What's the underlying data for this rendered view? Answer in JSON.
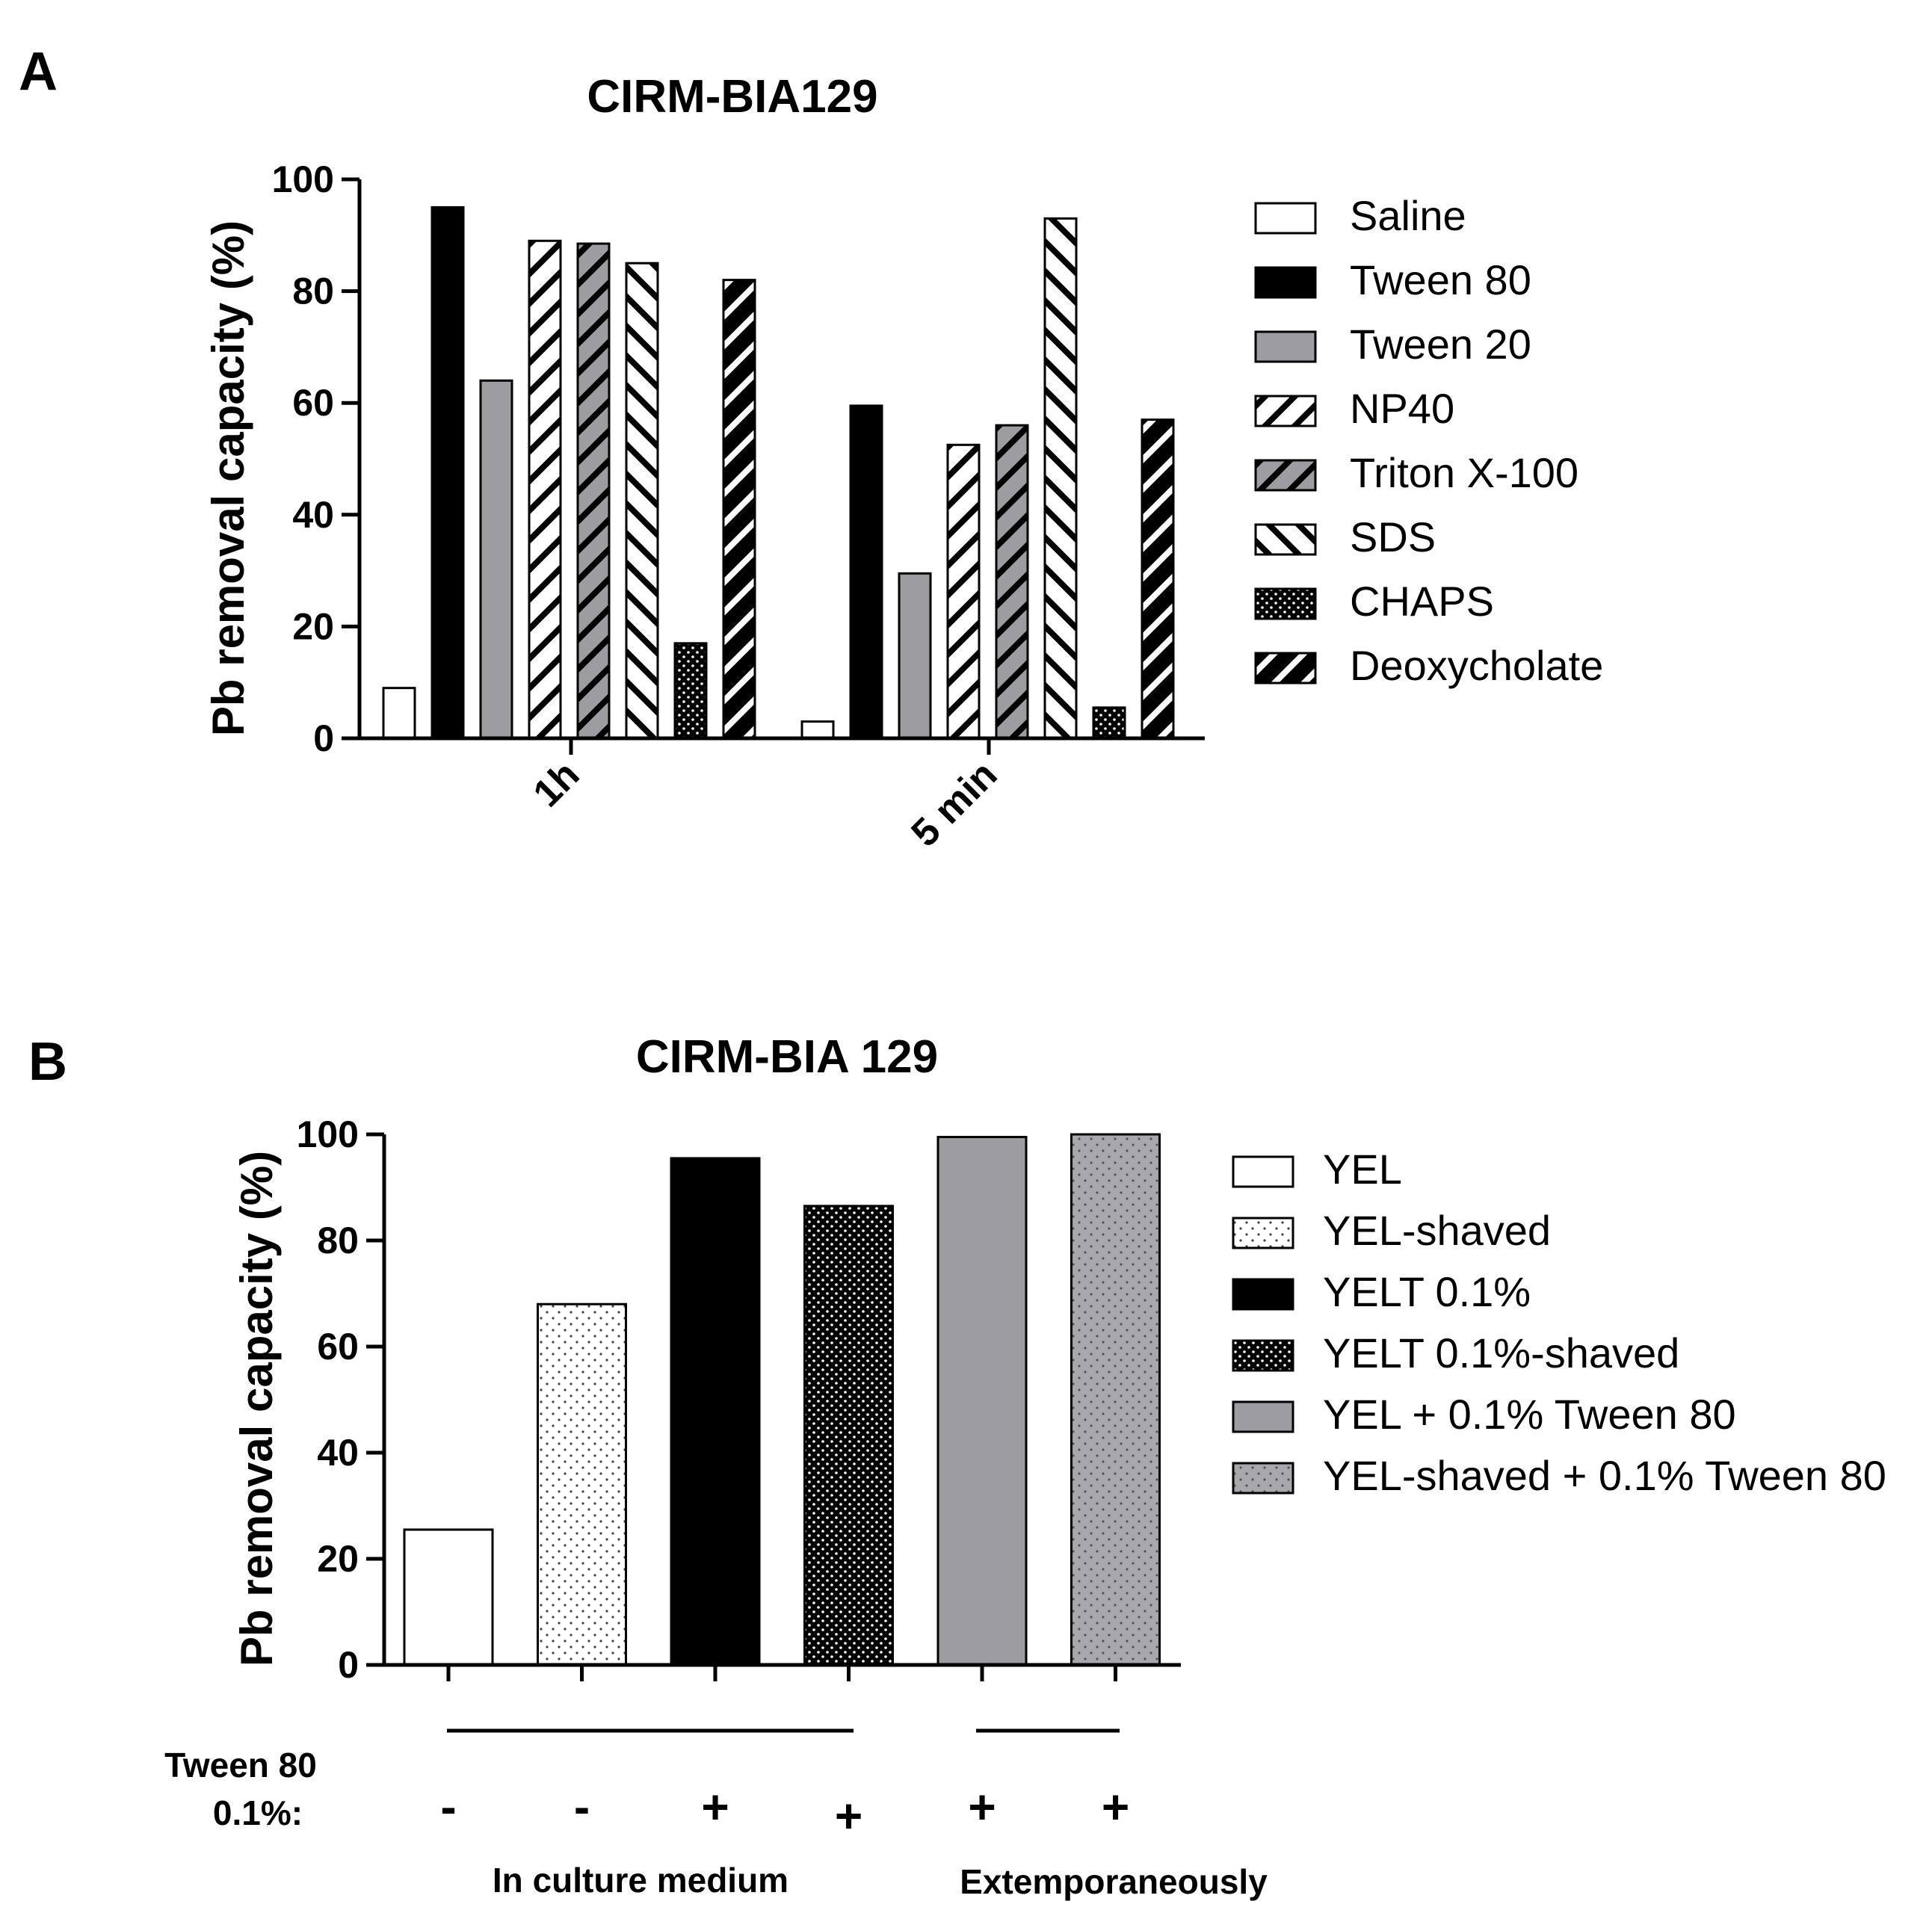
{
  "panel_a": {
    "letter": "A",
    "chart_data": {
      "type": "bar",
      "title": "CIRM-BIA129",
      "ylabel": "Pb removal capacity (%)",
      "xlabel": "",
      "ylim": [
        0,
        100
      ],
      "yticks": [
        "0",
        "20",
        "40",
        "60",
        "80",
        "100"
      ],
      "categories": [
        "1h",
        "5 min"
      ],
      "series": [
        {
          "name": "Saline",
          "values": [
            9,
            3
          ],
          "fill": "white"
        },
        {
          "name": "Tween 80",
          "values": [
            95,
            59.5
          ],
          "fill": "black"
        },
        {
          "name": "Tween 20",
          "values": [
            64,
            29.5
          ],
          "fill": "gray"
        },
        {
          "name": "NP40",
          "values": [
            89,
            52.5
          ],
          "fill": "hatch-white"
        },
        {
          "name": "Triton X-100",
          "values": [
            88.5,
            56
          ],
          "fill": "hatch-gray"
        },
        {
          "name": "SDS",
          "values": [
            85,
            93
          ],
          "fill": "backhatch-white"
        },
        {
          "name": "CHAPS",
          "values": [
            17,
            5.5
          ],
          "fill": "dots-black"
        },
        {
          "name": "Deoxycholate",
          "values": [
            82,
            57
          ],
          "fill": "hatch-black"
        }
      ],
      "legend": "right"
    }
  },
  "panel_b": {
    "letter": "B",
    "chart_data": {
      "type": "bar",
      "title": "CIRM-BIA 129",
      "ylabel": "Pb removal capacity (%)",
      "xlabel": "",
      "ylim": [
        0,
        100
      ],
      "yticks": [
        "0",
        "20",
        "40",
        "60",
        "80",
        "100"
      ],
      "categories": [
        "YEL",
        "YEL-shaved",
        "YELT 0.1%",
        "YELT 0.1%-shaved",
        "YEL + 0.1% Tween 80",
        "YEL-shaved + 0.1% Tween 80"
      ],
      "values": [
        25.5,
        68,
        95.5,
        86.5,
        99.5,
        100
      ],
      "fills": [
        "white",
        "dots-white",
        "black",
        "dots-black",
        "gray",
        "dots-gray"
      ],
      "legend": "right"
    },
    "annotation": {
      "row_label_line1": "Tween 80",
      "row_label_line2": "0.1%:",
      "signs": [
        "-",
        "-",
        "+",
        "+",
        "+",
        "+"
      ],
      "group1": "In culture medium",
      "group2": "Extemporaneously"
    }
  }
}
